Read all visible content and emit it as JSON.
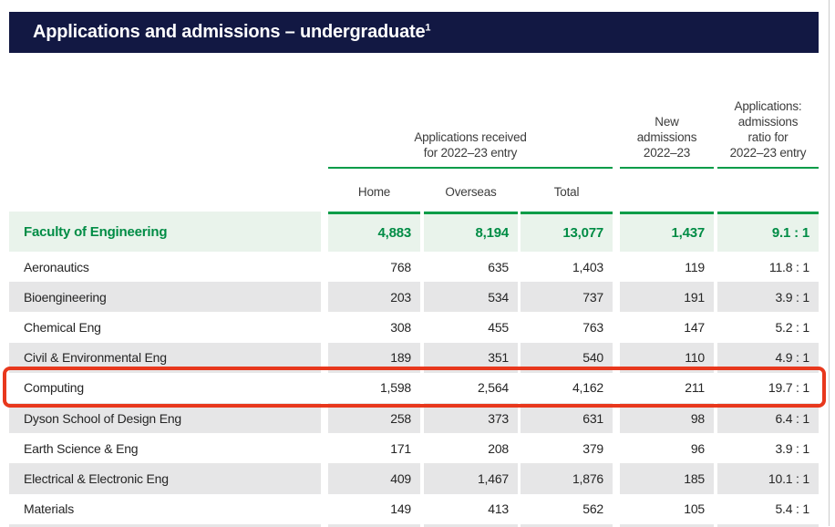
{
  "title_bar": {
    "text": "Applications and admissions – undergraduate",
    "superscript": "1"
  },
  "table": {
    "group_headers": {
      "applications": {
        "lines": [
          "Applications received",
          "for 2022–23 entry"
        ]
      },
      "admissions": {
        "lines": [
          "New",
          "admissions",
          "2022–23"
        ]
      },
      "ratio": {
        "lines": [
          "Applications:",
          "admissions",
          "ratio for",
          "2022–23 entry"
        ]
      }
    },
    "column_headers": {
      "home": "Home",
      "overseas": "Overseas",
      "total": "Total"
    },
    "summary_row": {
      "label": "Faculty of Engineering",
      "home": "4,883",
      "overseas": "8,194",
      "total": "13,077",
      "admissions": "1,437",
      "ratio": "9.1 : 1"
    },
    "rows": [
      {
        "label": "Aeronautics",
        "home": "768",
        "overseas": "635",
        "total": "1,403",
        "admissions": "119",
        "ratio": "11.8 : 1",
        "highlighted": false
      },
      {
        "label": "Bioengineering",
        "home": "203",
        "overseas": "534",
        "total": "737",
        "admissions": "191",
        "ratio": "3.9 : 1",
        "highlighted": false
      },
      {
        "label": "Chemical Eng",
        "home": "308",
        "overseas": "455",
        "total": "763",
        "admissions": "147",
        "ratio": "5.2 : 1",
        "highlighted": false
      },
      {
        "label": "Civil & Environmental Eng",
        "home": "189",
        "overseas": "351",
        "total": "540",
        "admissions": "110",
        "ratio": "4.9 : 1",
        "highlighted": false
      },
      {
        "label": "Computing",
        "home": "1,598",
        "overseas": "2,564",
        "total": "4,162",
        "admissions": "211",
        "ratio": "19.7 : 1",
        "highlighted": true
      },
      {
        "label": "Dyson School of Design Eng",
        "home": "258",
        "overseas": "373",
        "total": "631",
        "admissions": "98",
        "ratio": "6.4 : 1",
        "highlighted": false
      },
      {
        "label": "Earth Science & Eng",
        "home": "171",
        "overseas": "208",
        "total": "379",
        "admissions": "96",
        "ratio": "3.9 : 1",
        "highlighted": false
      },
      {
        "label": "Electrical & Electronic Eng",
        "home": "409",
        "overseas": "1,467",
        "total": "1,876",
        "admissions": "185",
        "ratio": "10.1 : 1",
        "highlighted": false
      },
      {
        "label": "Materials",
        "home": "149",
        "overseas": "413",
        "total": "562",
        "admissions": "105",
        "ratio": "5.4 : 1",
        "highlighted": false
      }
    ]
  },
  "annotation": {
    "highlighted_row": "Computing",
    "color": "#e8381d"
  },
  "colors": {
    "navy_bar": "#121843",
    "green_text": "#008c45",
    "green_line": "#009c48",
    "light_green_bg": "#e9f3eb",
    "gray_row_bg": "#e6e6e7",
    "red_annotation": "#e8381d",
    "body_text": "#252525",
    "header_text": "#3c3c3c"
  }
}
